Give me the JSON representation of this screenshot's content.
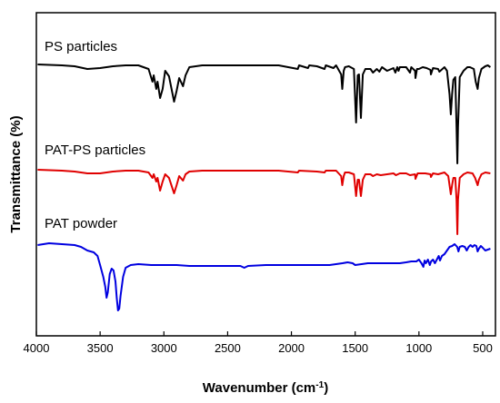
{
  "chart_data": {
    "type": "line",
    "xlabel": "Wavenumber (cm",
    "xlabel_sup": "-1",
    "xlabel_end": ")",
    "ylabel": "Transmittance (%)",
    "xlim": [
      4000,
      400
    ],
    "x_ticks": [
      4000,
      3500,
      3000,
      2500,
      2000,
      1500,
      1000,
      500
    ],
    "x_reversed": true,
    "y_units": "arbitrary (stacked spectra, no y tick labels)",
    "series": [
      {
        "name": "PS particles",
        "color": "#000000",
        "baseline": 72,
        "points": [
          [
            3990,
            71
          ],
          [
            3800,
            72
          ],
          [
            3700,
            73
          ],
          [
            3600,
            76
          ],
          [
            3500,
            75
          ],
          [
            3400,
            73
          ],
          [
            3300,
            72
          ],
          [
            3200,
            72
          ],
          [
            3120,
            76
          ],
          [
            3090,
            90
          ],
          [
            3080,
            83
          ],
          [
            3060,
            98
          ],
          [
            3050,
            90
          ],
          [
            3030,
            108
          ],
          [
            3010,
            98
          ],
          [
            2990,
            78
          ],
          [
            2960,
            84
          ],
          [
            2920,
            112
          ],
          [
            2900,
            100
          ],
          [
            2880,
            86
          ],
          [
            2850,
            95
          ],
          [
            2830,
            83
          ],
          [
            2800,
            74
          ],
          [
            2700,
            72
          ],
          [
            2500,
            72
          ],
          [
            2300,
            72
          ],
          [
            2100,
            72
          ],
          [
            1950,
            76
          ],
          [
            1940,
            72
          ],
          [
            1870,
            75
          ],
          [
            1860,
            72
          ],
          [
            1800,
            73
          ],
          [
            1740,
            76
          ],
          [
            1730,
            72
          ],
          [
            1670,
            75
          ],
          [
            1650,
            72
          ],
          [
            1610,
            82
          ],
          [
            1601,
            98
          ],
          [
            1590,
            78
          ],
          [
            1580,
            74
          ],
          [
            1550,
            73
          ],
          [
            1510,
            76
          ],
          [
            1493,
            135
          ],
          [
            1480,
            83
          ],
          [
            1470,
            82
          ],
          [
            1455,
            130
          ],
          [
            1440,
            82
          ],
          [
            1420,
            76
          ],
          [
            1380,
            76
          ],
          [
            1360,
            80
          ],
          [
            1330,
            76
          ],
          [
            1310,
            79
          ],
          [
            1290,
            74
          ],
          [
            1250,
            78
          ],
          [
            1200,
            75
          ],
          [
            1185,
            80
          ],
          [
            1170,
            74
          ],
          [
            1160,
            78
          ],
          [
            1150,
            74
          ],
          [
            1100,
            74
          ],
          [
            1070,
            80
          ],
          [
            1060,
            74
          ],
          [
            1030,
            78
          ],
          [
            1027,
            86
          ],
          [
            1015,
            76
          ],
          [
            1000,
            76
          ],
          [
            970,
            74
          ],
          [
            940,
            75
          ],
          [
            910,
            77
          ],
          [
            906,
            82
          ],
          [
            890,
            75
          ],
          [
            850,
            76
          ],
          [
            840,
            79
          ],
          [
            800,
            74
          ],
          [
            780,
            78
          ],
          [
            760,
            104
          ],
          [
            750,
            126
          ],
          [
            740,
            104
          ],
          [
            730,
            88
          ],
          [
            715,
            85
          ],
          [
            705,
            140
          ],
          [
            699,
            180
          ],
          [
            694,
            140
          ],
          [
            680,
            85
          ],
          [
            650,
            78
          ],
          [
            620,
            74
          ],
          [
            600,
            74
          ],
          [
            570,
            76
          ],
          [
            555,
            90
          ],
          [
            540,
            98
          ],
          [
            530,
            86
          ],
          [
            510,
            76
          ],
          [
            480,
            73
          ],
          [
            460,
            72
          ],
          [
            440,
            74
          ]
        ]
      },
      {
        "name": "PAT-PS particles",
        "color": "#e00000",
        "baseline": 188,
        "points": [
          [
            3990,
            187
          ],
          [
            3800,
            188
          ],
          [
            3700,
            189
          ],
          [
            3600,
            191
          ],
          [
            3500,
            191
          ],
          [
            3400,
            189
          ],
          [
            3300,
            188
          ],
          [
            3200,
            188
          ],
          [
            3120,
            190
          ],
          [
            3090,
            196
          ],
          [
            3080,
            192
          ],
          [
            3060,
            200
          ],
          [
            3050,
            196
          ],
          [
            3030,
            210
          ],
          [
            3010,
            200
          ],
          [
            2990,
            192
          ],
          [
            2960,
            196
          ],
          [
            2920,
            213
          ],
          [
            2900,
            204
          ],
          [
            2880,
            194
          ],
          [
            2850,
            199
          ],
          [
            2830,
            192
          ],
          [
            2800,
            189
          ],
          [
            2700,
            188
          ],
          [
            2500,
            188
          ],
          [
            2300,
            188
          ],
          [
            2100,
            188
          ],
          [
            1950,
            190
          ],
          [
            1940,
            188
          ],
          [
            1800,
            189
          ],
          [
            1740,
            190
          ],
          [
            1730,
            188
          ],
          [
            1650,
            188
          ],
          [
            1610,
            194
          ],
          [
            1601,
            204
          ],
          [
            1590,
            194
          ],
          [
            1580,
            190
          ],
          [
            1550,
            190
          ],
          [
            1510,
            192
          ],
          [
            1493,
            216
          ],
          [
            1480,
            198
          ],
          [
            1470,
            198
          ],
          [
            1455,
            216
          ],
          [
            1440,
            198
          ],
          [
            1420,
            192
          ],
          [
            1380,
            192
          ],
          [
            1360,
            194
          ],
          [
            1330,
            192
          ],
          [
            1300,
            193
          ],
          [
            1250,
            192
          ],
          [
            1200,
            191
          ],
          [
            1180,
            193
          ],
          [
            1150,
            191
          ],
          [
            1100,
            191
          ],
          [
            1070,
            193
          ],
          [
            1030,
            192
          ],
          [
            1027,
            197
          ],
          [
            1010,
            191
          ],
          [
            950,
            191
          ],
          [
            910,
            192
          ],
          [
            906,
            195
          ],
          [
            890,
            191
          ],
          [
            850,
            192
          ],
          [
            800,
            190
          ],
          [
            770,
            194
          ],
          [
            760,
            204
          ],
          [
            750,
            214
          ],
          [
            740,
            204
          ],
          [
            730,
            196
          ],
          [
            715,
            196
          ],
          [
            705,
            220
          ],
          [
            699,
            258
          ],
          [
            694,
            220
          ],
          [
            680,
            196
          ],
          [
            650,
            192
          ],
          [
            620,
            190
          ],
          [
            580,
            191
          ],
          [
            560,
            196
          ],
          [
            540,
            204
          ],
          [
            530,
            198
          ],
          [
            510,
            192
          ],
          [
            480,
            190
          ],
          [
            440,
            191
          ]
        ]
      },
      {
        "name": "PAT powder",
        "color": "#0000e0",
        "baseline": 292,
        "points": [
          [
            3990,
            270
          ],
          [
            3900,
            268
          ],
          [
            3800,
            269
          ],
          [
            3700,
            270
          ],
          [
            3650,
            272
          ],
          [
            3600,
            276
          ],
          [
            3550,
            278
          ],
          [
            3520,
            282
          ],
          [
            3500,
            292
          ],
          [
            3475,
            305
          ],
          [
            3460,
            316
          ],
          [
            3450,
            328
          ],
          [
            3440,
            322
          ],
          [
            3425,
            302
          ],
          [
            3410,
            296
          ],
          [
            3395,
            298
          ],
          [
            3380,
            310
          ],
          [
            3370,
            328
          ],
          [
            3360,
            342
          ],
          [
            3350,
            340
          ],
          [
            3340,
            326
          ],
          [
            3320,
            305
          ],
          [
            3300,
            295
          ],
          [
            3260,
            292
          ],
          [
            3200,
            291
          ],
          [
            3100,
            292
          ],
          [
            3000,
            292
          ],
          [
            2900,
            292
          ],
          [
            2800,
            293
          ],
          [
            2700,
            293
          ],
          [
            2600,
            293
          ],
          [
            2500,
            293
          ],
          [
            2400,
            293
          ],
          [
            2370,
            295
          ],
          [
            2340,
            293
          ],
          [
            2200,
            292
          ],
          [
            2100,
            292
          ],
          [
            2000,
            292
          ],
          [
            1900,
            292
          ],
          [
            1800,
            292
          ],
          [
            1700,
            292
          ],
          [
            1650,
            291
          ],
          [
            1600,
            290
          ],
          [
            1560,
            289
          ],
          [
            1520,
            290
          ],
          [
            1500,
            292
          ],
          [
            1450,
            291
          ],
          [
            1400,
            290
          ],
          [
            1300,
            290
          ],
          [
            1200,
            290
          ],
          [
            1150,
            290
          ],
          [
            1100,
            289
          ],
          [
            1060,
            288
          ],
          [
            1020,
            288
          ],
          [
            1000,
            286
          ],
          [
            980,
            290
          ],
          [
            965,
            294
          ],
          [
            955,
            287
          ],
          [
            945,
            290
          ],
          [
            930,
            286
          ],
          [
            915,
            292
          ],
          [
            905,
            288
          ],
          [
            890,
            286
          ],
          [
            875,
            290
          ],
          [
            860,
            286
          ],
          [
            845,
            282
          ],
          [
            835,
            287
          ],
          [
            820,
            282
          ],
          [
            800,
            280
          ],
          [
            780,
            276
          ],
          [
            760,
            272
          ],
          [
            740,
            271
          ],
          [
            720,
            269
          ],
          [
            700,
            272
          ],
          [
            690,
            277
          ],
          [
            680,
            272
          ],
          [
            660,
            271
          ],
          [
            640,
            272
          ],
          [
            625,
            276
          ],
          [
            610,
            272
          ],
          [
            595,
            270
          ],
          [
            580,
            272
          ],
          [
            565,
            270
          ],
          [
            550,
            271
          ],
          [
            540,
            277
          ],
          [
            530,
            274
          ],
          [
            515,
            271
          ],
          [
            500,
            273
          ],
          [
            480,
            276
          ],
          [
            460,
            275
          ],
          [
            440,
            274
          ]
        ]
      }
    ]
  }
}
